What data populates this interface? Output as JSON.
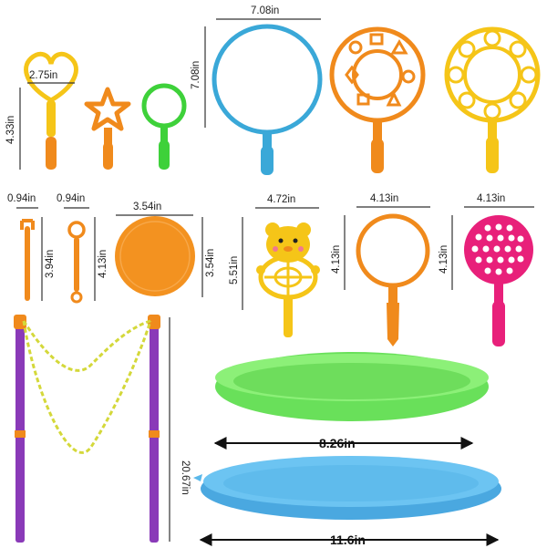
{
  "dimensions": {
    "heart_width": "2.75in",
    "heart_height": "4.33in",
    "big_wand_width": "7.08in",
    "big_wand_height": "7.08in",
    "small_stick_width": "0.94in",
    "small_stick_height": "3.94in",
    "small_ring_width": "0.94in",
    "small_ring_height": "4.13in",
    "disc_width": "3.54in",
    "disc_height": "3.54in",
    "bear_width": "4.72in",
    "bear_height": "5.51in",
    "orange_wand_width": "4.13in",
    "orange_wand_height": "4.13in",
    "pink_wand_width": "4.13in",
    "pink_wand_height": "4.13in",
    "pole_height": "20.67in",
    "green_tray_width": "8.26in",
    "blue_tray_width": "11.6in"
  },
  "colors": {
    "yellow": "#f5c518",
    "orange": "#f08a1c",
    "green": "#3ed13a",
    "blue": "#3aa8d8",
    "pink": "#e8207a",
    "purple": "#8a3ab8",
    "tray_green": "#69e05a",
    "tray_blue": "#5ab8ea"
  }
}
